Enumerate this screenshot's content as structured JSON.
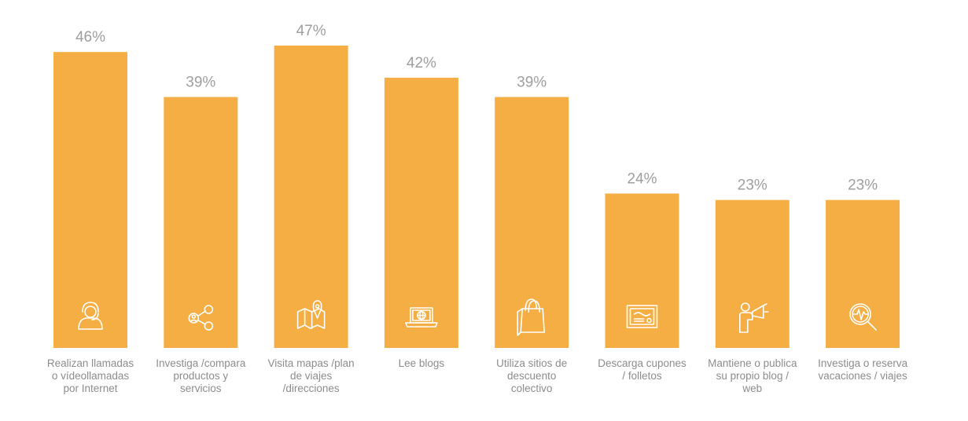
{
  "chart_data": {
    "type": "bar",
    "categories": [
      [
        "Realizan llamadas",
        "o vídeollamadas",
        "por Internet"
      ],
      [
        "Investiga /compara",
        "productos y",
        "servicios"
      ],
      [
        "Visita mapas /plan",
        "de viajes",
        "/direcciones"
      ],
      [
        "Lee blogs"
      ],
      [
        "Utiliza sitios de",
        "descuento",
        "colectivo"
      ],
      [
        "Descarga cupones",
        "/ folletos"
      ],
      [
        "Mantiene o publica",
        "su propio blog /",
        "web"
      ],
      [
        "Investiga o reserva",
        "vacaciones / viajes"
      ]
    ],
    "values": [
      46,
      39,
      47,
      42,
      39,
      24,
      23,
      23
    ],
    "value_labels": [
      "46%",
      "39%",
      "47%",
      "42%",
      "39%",
      "24%",
      "23%",
      "23%"
    ],
    "icons": [
      "headset-person-icon",
      "share-network-icon",
      "map-pin-icon",
      "laptop-globe-icon",
      "shopping-bag-icon",
      "coupon-icon",
      "person-megaphone-icon",
      "magnifier-pulse-icon"
    ],
    "title": "",
    "xlabel": "",
    "ylabel": "",
    "ylim": [
      0,
      47
    ],
    "grid": false,
    "legend": "none",
    "bar_color": "#F5AE43",
    "value_label_color": "#9E9E9E",
    "category_label_color": "#8C8C8C"
  }
}
